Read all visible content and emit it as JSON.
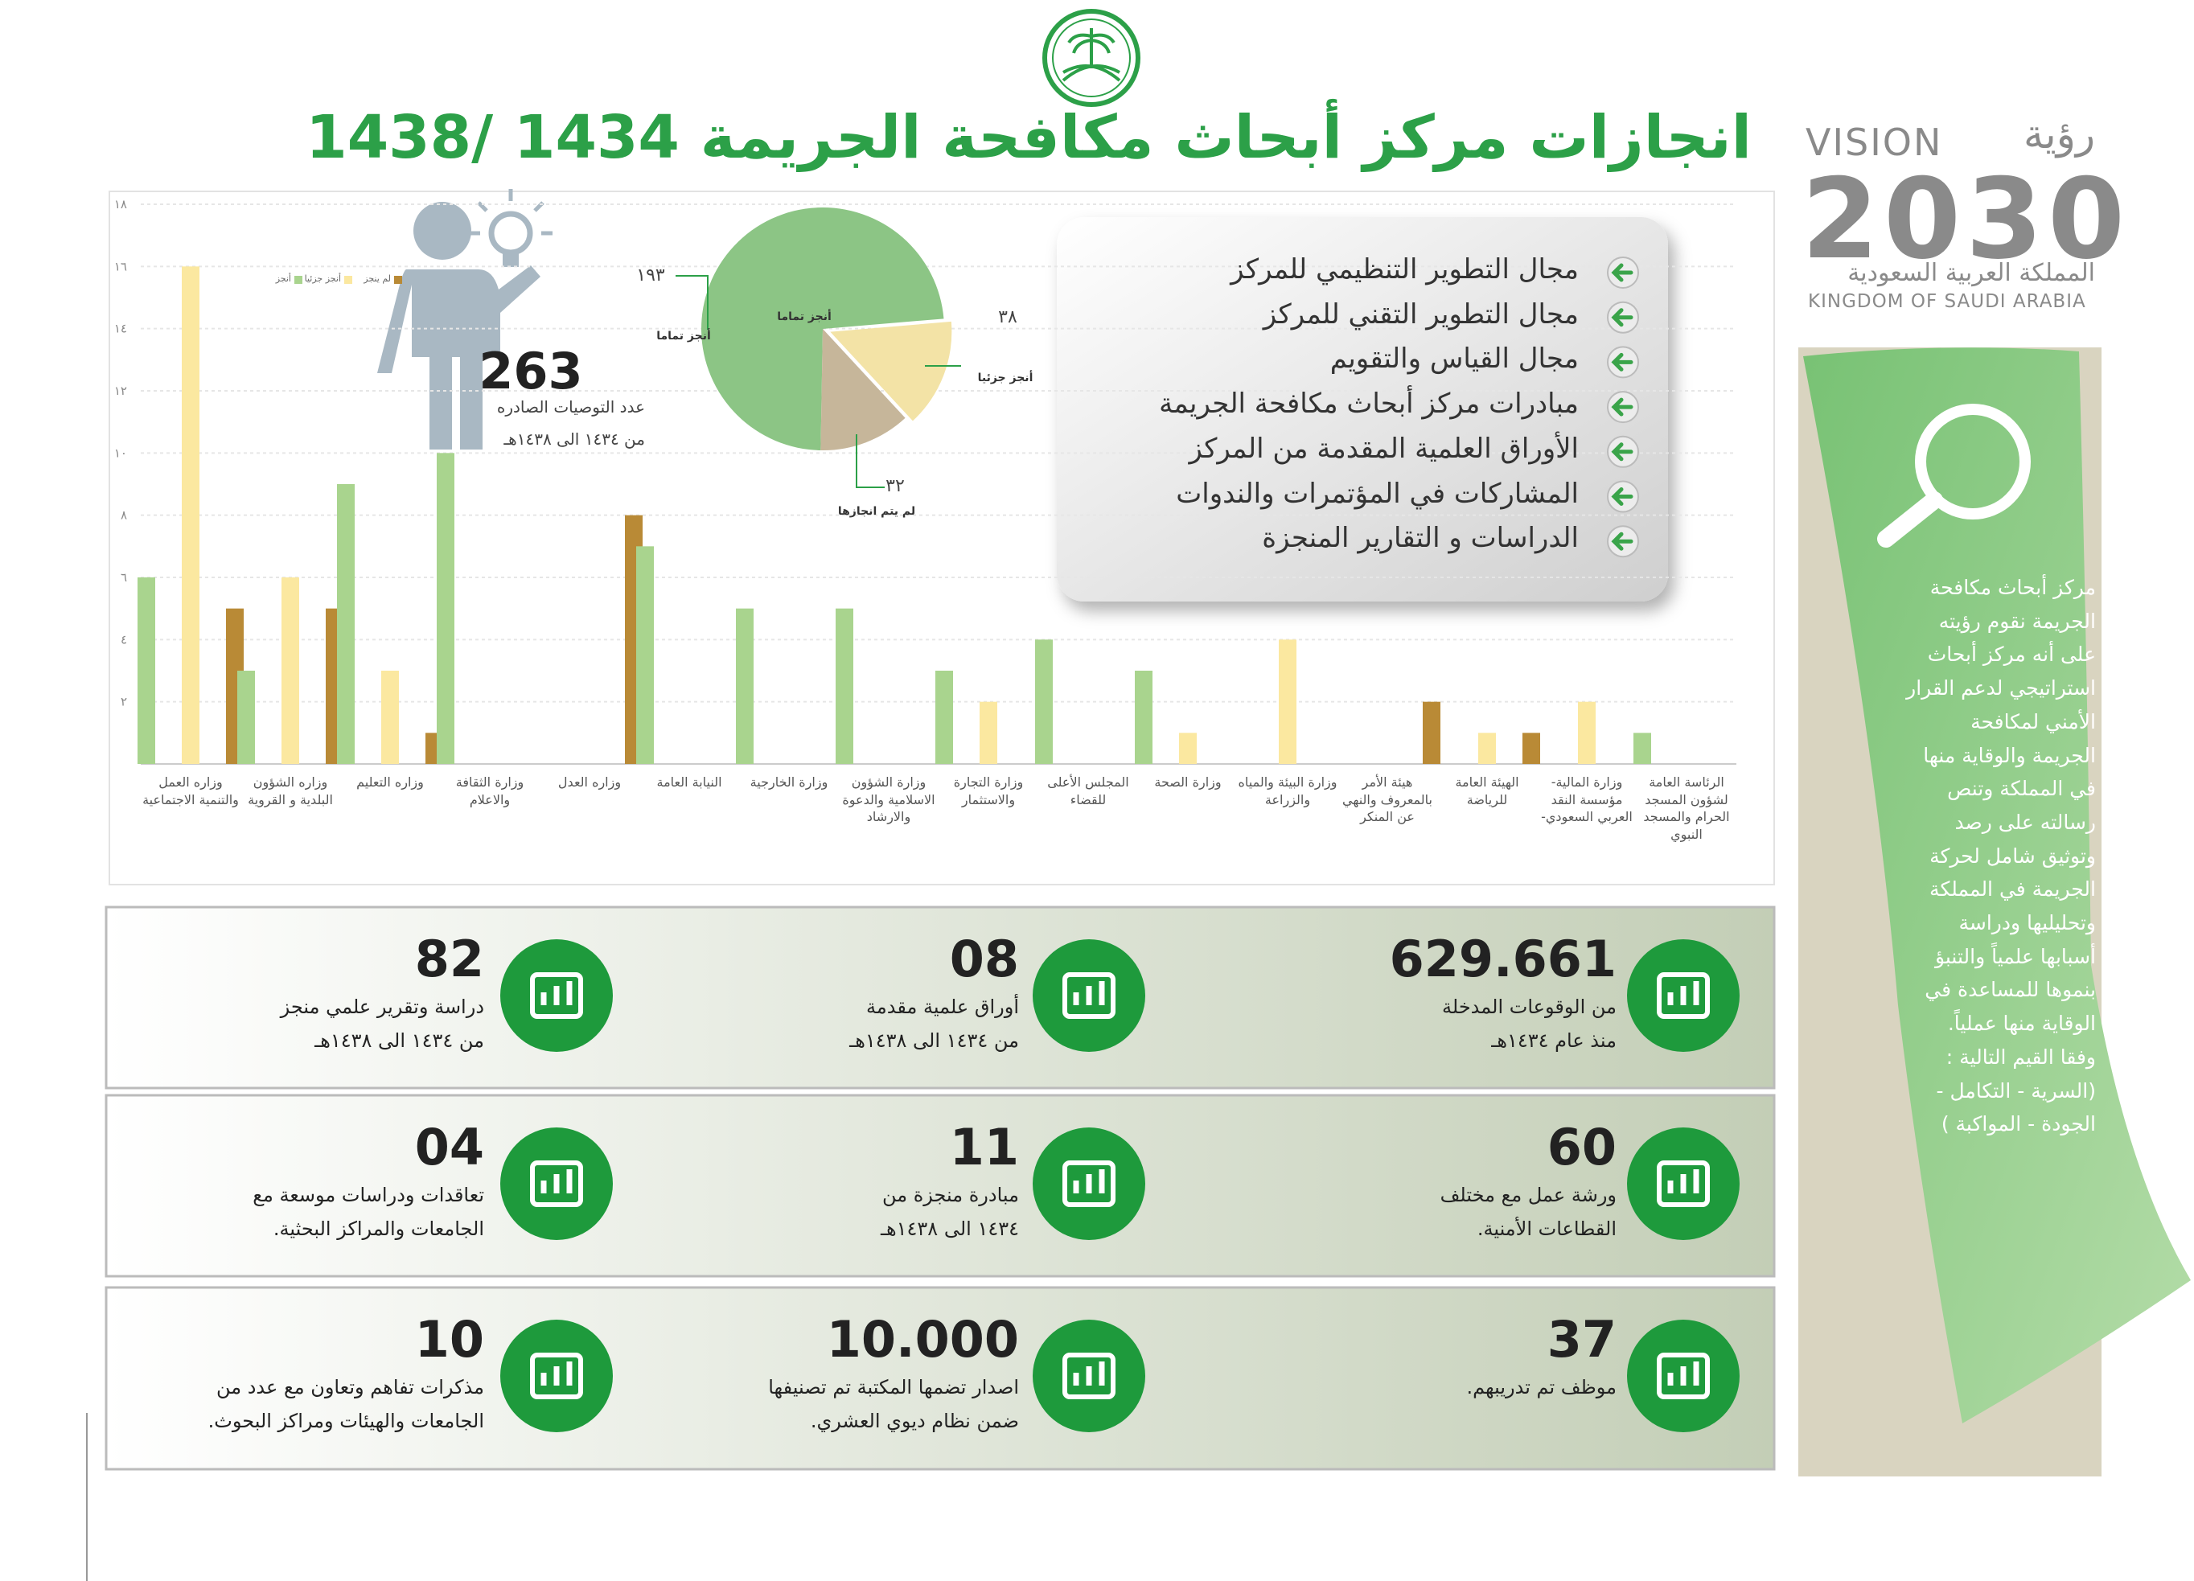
{
  "header": {
    "title": "انجازات مركز أبحاث مكافحة الجريمة 1434 /1438"
  },
  "vision": {
    "word": "VISION",
    "arabic_word": "رؤية",
    "year": "2030",
    "arabic_kingdom": "المملكة العربية السعودية",
    "kingdom": "KINGDOM OF SAUDI ARABIA"
  },
  "chart_data": [
    {
      "type": "bar",
      "categories": [
        "وزاره العمل والتنمية الاجتماعية",
        "وزاره الشؤون البلدية و القروية",
        "وزاره التعليم",
        "وزارة الثقافة والاعلام",
        "وزاره العدل",
        "النيابة العامة",
        "وزارة الخارجية",
        "وزارة الشؤون الاسلامية والدعوة والارشاد",
        "وزارة التجارة والاستثمار",
        "المجلس الأعلى للقضاء",
        "وزارة الصحة",
        "وزارة البيئة والمياه والزراعة",
        "هيئة الأمر بالمعروف والنهي عن المنكر",
        "الهيئة العامة للرياضة",
        "وزارة المالية- مؤسسة النقد العربي السعودي-",
        "الرئاسة العامة لشؤون المسجد الحرام والمسجد النبوي"
      ],
      "series": [
        {
          "name": "أنجز",
          "color": "#a9d48e",
          "values": [
            6,
            3,
            9,
            10,
            0,
            7,
            5,
            5,
            3,
            4,
            3,
            0,
            0,
            0,
            0,
            1
          ]
        },
        {
          "name": "أنجز جزئيا",
          "color": "#fbe8a0",
          "values": [
            16,
            6,
            3,
            0,
            0,
            0,
            0,
            0,
            2,
            0,
            1,
            4,
            0,
            1,
            2,
            0
          ]
        },
        {
          "name": "لم ينجز",
          "color": "#b98a36",
          "values": [
            5,
            5,
            1,
            0,
            8,
            0,
            0,
            0,
            0,
            0,
            0,
            0,
            2,
            1,
            0,
            0
          ]
        }
      ],
      "ylim": [
        0,
        18
      ],
      "yticks": [
        {
          "value": 2,
          "label": "٢"
        },
        {
          "value": 4,
          "label": "٤"
        },
        {
          "value": 6,
          "label": "٦"
        },
        {
          "value": 8,
          "label": "٨"
        },
        {
          "value": 10,
          "label": "١٠"
        },
        {
          "value": 12,
          "label": "١٢"
        },
        {
          "value": 14,
          "label": "١٤"
        },
        {
          "value": 16,
          "label": "١٦"
        },
        {
          "value": 18,
          "label": "١٨"
        }
      ],
      "grid": true
    },
    {
      "type": "pie",
      "labels": [
        "أنجز تماما",
        "أنجز جزئيا",
        "لم يتم انجازها"
      ],
      "values": [
        193,
        38,
        32
      ],
      "value_labels": [
        "١٩٣",
        "٣٨",
        "٣٢"
      ],
      "colors": [
        "#8cc585",
        "#f3e3a6",
        "#c6b69a"
      ]
    }
  ],
  "recommendations": {
    "value": 263,
    "label": "عدد التوصيات الصادره",
    "period": "من ١٤٣٤ الى ١٤٣٨هـ"
  },
  "fields": [
    "مجال التطوير التنظيمي للمركز",
    "مجال التطوير التقني للمركز",
    "مجال القياس والتقويم",
    "مبادرات مركز أبحاث مكافحة الجريمة",
    "الأوراق العلمية المقدمة من المركز",
    "المشاركات في المؤتمرات والندوات",
    "الدراسات و التقارير المنجزة"
  ],
  "sidebar": {
    "lines": [
      "مركز أبحاث مكافحة",
      "الجريمة نقوم رؤيته",
      "على أنه مركز أبحاث",
      "استراتيجي لدعم القرار",
      "الأمني لمكافحة",
      "الجريمة والوقاية منها",
      "في المملكة وتنص",
      "رسالته على رصد",
      "وتوثيق شامل لحركة",
      "الجريمة في المملكة",
      "وتحليليها ودراسة",
      "أسبابها علمياً والتنبؤ",
      "بنموها للمساعدة في",
      "الوقاية منها عملياً.",
      "وفقا القيم التالية :",
      "(السرية - التكامل -",
      "الجودة - المواكبة )"
    ]
  },
  "stats": [
    [
      {
        "value": "629.661",
        "lines": [
          "من الوقوعات المدخلة",
          "منذ عام ١٤٣٤هـ"
        ]
      },
      {
        "value": "08",
        "lines": [
          "أوراق علمية مقدمة",
          "من ١٤٣٤ الى ١٤٣٨هـ"
        ]
      },
      {
        "value": "82",
        "lines": [
          "دراسة وتقرير علمي منجز",
          "من ١٤٣٤ الى ١٤٣٨هـ"
        ]
      }
    ],
    [
      {
        "value": "60",
        "lines": [
          "ورشة عمل مع مختلف",
          "القطاعات الأمنية."
        ]
      },
      {
        "value": "11",
        "lines": [
          "مبادرة منجزة من",
          "١٤٣٤ الى ١٤٣٨هـ"
        ]
      },
      {
        "value": "04",
        "lines": [
          "تعاقدات ودراسات موسعة مع",
          "الجامعات والمراكز البحثية."
        ]
      }
    ],
    [
      {
        "value": "37",
        "lines": [
          "موظف تم تدريبهم."
        ]
      },
      {
        "value": "10.000",
        "lines": [
          "اصدار تضمها المكتبة تم تصنيفها",
          "ضمن نظام ديوي العشري."
        ]
      },
      {
        "value": "10",
        "lines": [
          "مذكرات تفاهم وتعاون مع عدد من",
          "الجامعات والهيئات ومراكز البحوث."
        ]
      }
    ]
  ]
}
